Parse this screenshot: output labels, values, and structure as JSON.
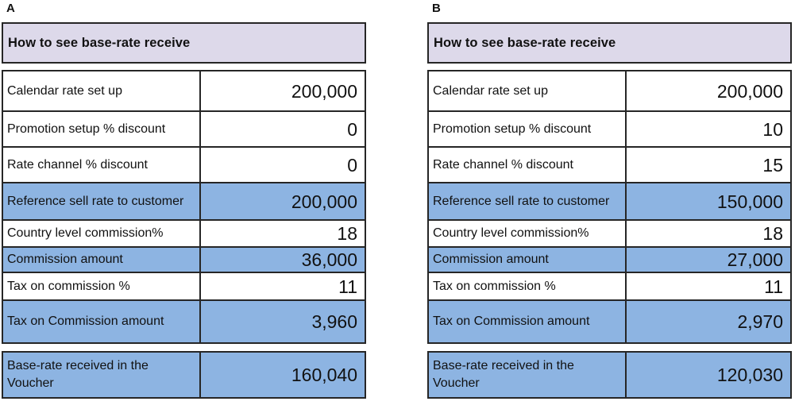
{
  "colors": {
    "page_bg": "#ffffff",
    "title_bg": "#DDD9EA",
    "highlight_bg": "#8DB4E2",
    "border": "#262626",
    "text": "#111111"
  },
  "tables": [
    {
      "panel_label": "A",
      "title": "How to see base-rate receive",
      "rows": [
        {
          "label": "Calendar rate set up",
          "value": "200,000",
          "highlight": false
        },
        {
          "label": "Promotion setup % discount",
          "value": "0",
          "highlight": false
        },
        {
          "label": "Rate channel % discount",
          "value": "0",
          "highlight": false
        },
        {
          "label": "Reference sell rate to customer",
          "value": "200,000",
          "highlight": true
        },
        {
          "label": "Country level commission%",
          "value": "18",
          "highlight": false
        },
        {
          "label": "Commission amount",
          "value": "36,000",
          "highlight": true
        },
        {
          "label": "Tax on commission %",
          "value": "11",
          "highlight": false
        },
        {
          "label": "Tax on Commission amount",
          "value": "3,960",
          "highlight": true
        }
      ],
      "footer": {
        "label": "Base-rate received in the Voucher",
        "value": "160,040",
        "highlight": true
      }
    },
    {
      "panel_label": "B",
      "title": "How to see base-rate receive",
      "rows": [
        {
          "label": "Calendar rate set up",
          "value": "200,000",
          "highlight": false
        },
        {
          "label": "Promotion setup % discount",
          "value": "10",
          "highlight": false
        },
        {
          "label": "Rate channel % discount",
          "value": "15",
          "highlight": false
        },
        {
          "label": "Reference sell rate to customer",
          "value": "150,000",
          "highlight": true
        },
        {
          "label": "Country level commission%",
          "value": "18",
          "highlight": false
        },
        {
          "label": "Commission amount",
          "value": "27,000",
          "highlight": true
        },
        {
          "label": "Tax on commission %",
          "value": "11",
          "highlight": false
        },
        {
          "label": "Tax on Commission amount",
          "value": "2,970",
          "highlight": true
        }
      ],
      "footer": {
        "label": "Base-rate received in the Voucher",
        "value": "120,030",
        "highlight": true
      }
    }
  ]
}
